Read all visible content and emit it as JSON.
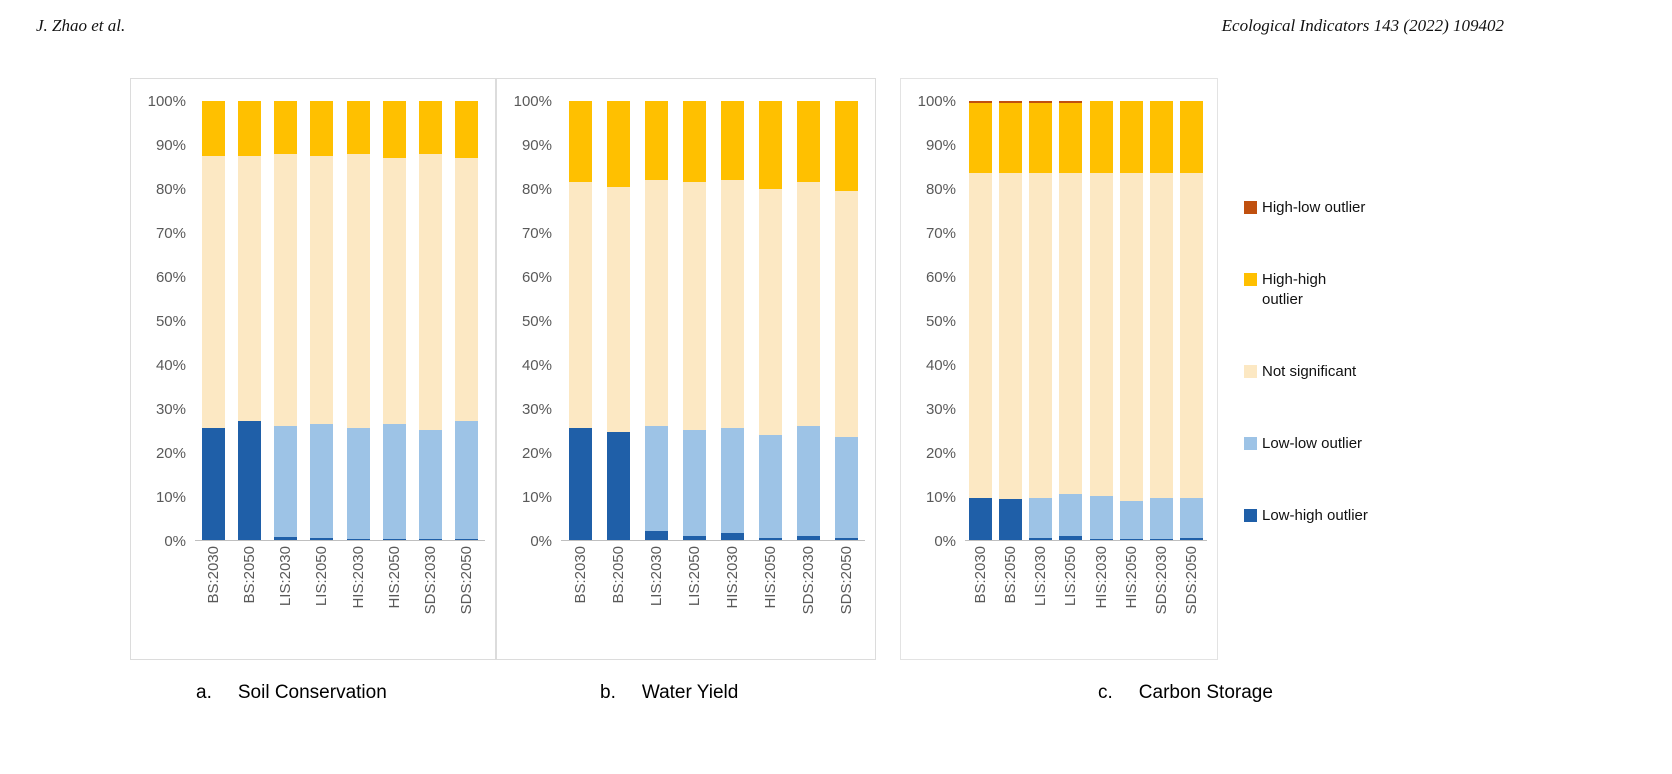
{
  "header": {
    "authors": "J. Zhao et al.",
    "journal": "Ecological Indicators 143 (2022) 109402"
  },
  "colors": {
    "low_high": "#1F5FA8",
    "low_low": "#9DC3E6",
    "not_significant": "#FCE8C3",
    "high_high": "#FFC000",
    "high_low": "#C0500F"
  },
  "legend": {
    "items": [
      {
        "label": "High-low outlier",
        "key": "high_low",
        "wrap": false
      },
      {
        "label": "High-high outlier",
        "key": "high_high",
        "wrap": true
      },
      {
        "label": "Not significant",
        "key": "not_significant",
        "wrap": false
      },
      {
        "label": "Low-low outlier",
        "key": "low_low",
        "wrap": false
      },
      {
        "label": "Low-high outlier",
        "key": "low_high",
        "wrap": false
      }
    ]
  },
  "captions": [
    {
      "prefix": "a.",
      "title": "Soil Conservation"
    },
    {
      "prefix": "b.",
      "title": "Water Yield"
    },
    {
      "prefix": "c.",
      "title": "Carbon Storage"
    }
  ],
  "chart_data": [
    {
      "type": "bar",
      "subtype": "stacked-100",
      "title": "Soil Conservation",
      "categories": [
        "BS:2030",
        "BS:2050",
        "LIS:2030",
        "LIS:2050",
        "HIS:2030",
        "HIS:2050",
        "SDS:2030",
        "SDS:2050"
      ],
      "series": [
        {
          "name": "Low-high outlier",
          "key": "low_high",
          "values": [
            25.5,
            27.0,
            0.7,
            0.4,
            0.3,
            0.3,
            0.2,
            0.3
          ]
        },
        {
          "name": "Low-low outlier",
          "key": "low_low",
          "values": [
            0,
            0,
            25.3,
            26.1,
            25.2,
            26.2,
            24.8,
            26.7
          ]
        },
        {
          "name": "Not significant",
          "key": "not_significant",
          "values": [
            62.0,
            60.5,
            62.0,
            61.0,
            62.5,
            60.5,
            63.0,
            60.0
          ]
        },
        {
          "name": "High-high outlier",
          "key": "high_high",
          "values": [
            12.5,
            12.5,
            12.0,
            12.5,
            12.0,
            13.0,
            12.0,
            13.0
          ]
        },
        {
          "name": "High-low outlier",
          "key": "high_low",
          "values": [
            0,
            0,
            0,
            0,
            0,
            0,
            0,
            0
          ]
        }
      ],
      "ylim": [
        0,
        100
      ],
      "yticks": [
        "100%",
        "90%",
        "80%",
        "70%",
        "60%",
        "50%",
        "40%",
        "30%",
        "20%",
        "10%",
        "0%"
      ],
      "grid": false,
      "legend_position": "right-of-figure"
    },
    {
      "type": "bar",
      "subtype": "stacked-100",
      "title": "Water Yield",
      "categories": [
        "BS:2030",
        "BS:2050",
        "LIS:2030",
        "LIS:2050",
        "HIS:2030",
        "HIS:2050",
        "SDS:2030",
        "SDS:2050"
      ],
      "series": [
        {
          "name": "Low-high outlier",
          "key": "low_high",
          "values": [
            25.5,
            24.5,
            2.0,
            1.0,
            1.5,
            0.5,
            1.0,
            0.5
          ]
        },
        {
          "name": "Low-low outlier",
          "key": "low_low",
          "values": [
            0,
            0,
            24.0,
            24.0,
            24.0,
            23.5,
            25.0,
            23.0
          ]
        },
        {
          "name": "Not significant",
          "key": "not_significant",
          "values": [
            56.0,
            56.0,
            56.0,
            56.5,
            56.5,
            56.0,
            55.5,
            56.0
          ]
        },
        {
          "name": "High-high outlier",
          "key": "high_high",
          "values": [
            18.5,
            19.5,
            18.0,
            18.5,
            18.0,
            20.0,
            18.5,
            20.5
          ]
        },
        {
          "name": "High-low outlier",
          "key": "high_low",
          "values": [
            0,
            0,
            0,
            0,
            0,
            0,
            0,
            0
          ]
        }
      ],
      "ylim": [
        0,
        100
      ],
      "yticks": [
        "100%",
        "90%",
        "80%",
        "70%",
        "60%",
        "50%",
        "40%",
        "30%",
        "20%",
        "10%",
        "0%"
      ],
      "grid": false,
      "legend_position": "right-of-figure"
    },
    {
      "type": "bar",
      "subtype": "stacked-100",
      "title": "Carbon Storage",
      "categories": [
        "BS:2030",
        "BS:2050",
        "LIS:2030",
        "LIS:2050",
        "HIS:2030",
        "HIS:2050",
        "SDS:2030",
        "SDS:2050"
      ],
      "series": [
        {
          "name": "Low-high outlier",
          "key": "low_high",
          "values": [
            9.5,
            9.3,
            0.5,
            1.0,
            0.3,
            0.3,
            0.3,
            0.5
          ]
        },
        {
          "name": "Low-low outlier",
          "key": "low_low",
          "values": [
            0,
            0,
            9.0,
            9.5,
            9.7,
            8.7,
            9.2,
            9.0
          ]
        },
        {
          "name": "Not significant",
          "key": "not_significant",
          "values": [
            74.0,
            74.2,
            74.0,
            73.0,
            73.5,
            74.5,
            74.0,
            74.0
          ]
        },
        {
          "name": "High-high outlier",
          "key": "high_high",
          "values": [
            16.0,
            16.0,
            16.0,
            16.0,
            16.5,
            16.5,
            16.5,
            16.5
          ]
        },
        {
          "name": "High-low outlier",
          "key": "high_low",
          "values": [
            0.5,
            0.5,
            0.5,
            0.5,
            0,
            0,
            0,
            0
          ]
        }
      ],
      "ylim": [
        0,
        100
      ],
      "yticks": [
        "100%",
        "90%",
        "80%",
        "70%",
        "60%",
        "50%",
        "40%",
        "30%",
        "20%",
        "10%",
        "0%"
      ],
      "grid": false,
      "legend_position": "right-of-figure"
    }
  ]
}
